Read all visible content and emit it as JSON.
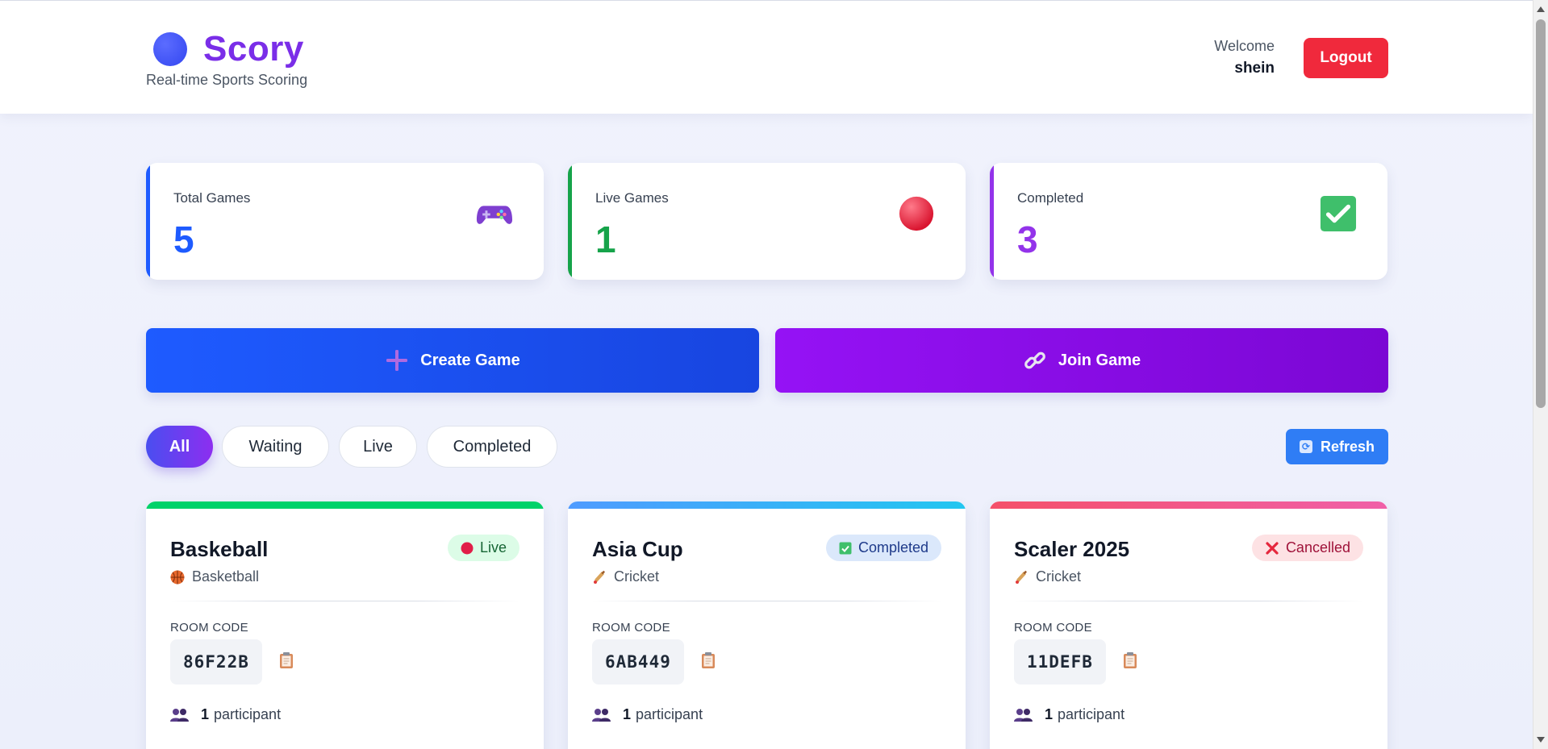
{
  "brand": {
    "title": "Scory",
    "subtitle": "Real-time Sports Scoring"
  },
  "user": {
    "welcome_label": "Welcome",
    "name": "shein",
    "logout_label": "Logout"
  },
  "stats": [
    {
      "label": "Total Games",
      "value": "5",
      "color": "#1e5bff",
      "icon": "game-controller-icon"
    },
    {
      "label": "Live Games",
      "value": "1",
      "color": "#16a34a",
      "icon": "red-circle-icon"
    },
    {
      "label": "Completed",
      "value": "3",
      "color": "#9333ea",
      "icon": "check-mark-icon"
    }
  ],
  "actions": {
    "create_label": "Create Game",
    "join_label": "Join Game"
  },
  "filters": [
    {
      "label": "All",
      "active": true
    },
    {
      "label": "Waiting",
      "active": false
    },
    {
      "label": "Live",
      "active": false
    },
    {
      "label": "Completed",
      "active": false
    }
  ],
  "refresh_label": "Refresh",
  "games": [
    {
      "title": "Baskeball",
      "sport": "Basketball",
      "sport_icon": "basketball-icon",
      "status": "Live",
      "status_icon": "red-circle-icon",
      "room_label": "ROOM CODE",
      "room_code": "86F22B",
      "participant_count": "1",
      "participant_label": "participant"
    },
    {
      "title": "Asia Cup",
      "sport": "Cricket",
      "sport_icon": "cricket-icon",
      "status": "Completed",
      "status_icon": "check-mark-icon",
      "room_label": "ROOM CODE",
      "room_code": "6AB449",
      "participant_count": "1",
      "participant_label": "participant"
    },
    {
      "title": "Scaler 2025",
      "sport": "Cricket",
      "sport_icon": "cricket-icon",
      "status": "Cancelled",
      "status_icon": "cross-mark-icon",
      "room_label": "ROOM CODE",
      "room_code": "11DEFB",
      "participant_count": "1",
      "participant_label": "participant"
    }
  ],
  "colors": {
    "primary": "#1e5bff",
    "purple": "#9512f5",
    "danger": "#f0293c",
    "live_green": "#00d26a",
    "completed_blue": "#3b9bff",
    "cancelled_red": "#ff5a6e"
  }
}
